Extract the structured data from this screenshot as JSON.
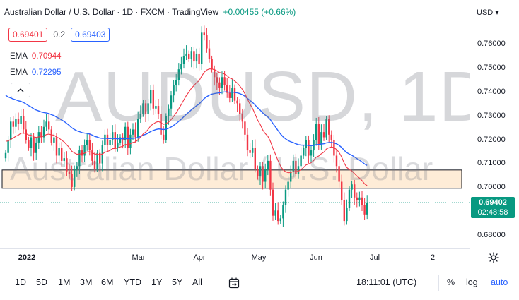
{
  "legend": {
    "title": "Australian Dollar / U.S. Dollar · 1D · FXCM · TradingView",
    "change": "+0.00455 (+0.66%)"
  },
  "bidask": {
    "bid": "0.69401",
    "spread": "0.2",
    "ask": "0.69403"
  },
  "ema1": {
    "label": "EMA",
    "value": "0.70944",
    "color": "#f23645"
  },
  "ema2": {
    "label": "EMA",
    "value": "0.72295",
    "color": "#2962ff"
  },
  "collapse_icon": "chevron-up-icon",
  "watermark": {
    "symbol": "AUDUSD, 1D",
    "description": "Australian Dollar / U.S. Dollar"
  },
  "currency": "USD ▾",
  "price_axis": [
    "0.76000",
    "0.75000",
    "0.74000",
    "0.73000",
    "0.72000",
    "0.71000",
    "0.70000",
    "0.68000"
  ],
  "time_axis": [
    "2022",
    "Mar",
    "Apr",
    "May",
    "Jun",
    "Jul",
    "2"
  ],
  "last_price": {
    "price": "0.69402",
    "countdown": "02:48:58",
    "color": "#089981"
  },
  "toolbar": {
    "timeframes": [
      "1D",
      "5D",
      "1M",
      "3M",
      "6M",
      "YTD",
      "1Y",
      "5Y",
      "All"
    ],
    "clock": "18:11:01 (UTC)",
    "percent": "%",
    "log": "log",
    "auto": "auto"
  },
  "colors": {
    "up": "#089981",
    "down": "#f23645",
    "zone_fill": "#fde5c9"
  },
  "chart_data": {
    "type": "candlestick",
    "symbol": "AUDUSD",
    "interval": "1D",
    "ylim": [
      0.6765,
      0.7715
    ],
    "price_ticks": [
      0.76,
      0.75,
      0.74,
      0.73,
      0.72,
      0.71,
      0.7,
      0.68
    ],
    "zone": [
      0.6995,
      0.7065
    ],
    "last_price": 0.69402,
    "close": [
      0.713,
      0.718,
      0.725,
      0.723,
      0.726,
      0.724,
      0.727,
      0.722,
      0.718,
      0.715,
      0.719,
      0.713,
      0.717,
      0.721,
      0.719,
      0.723,
      0.725,
      0.722,
      0.717,
      0.719,
      0.712,
      0.715,
      0.71,
      0.711,
      0.706,
      0.705,
      0.7,
      0.707,
      0.708,
      0.714,
      0.712,
      0.716,
      0.718,
      0.714,
      0.71,
      0.707,
      0.713,
      0.709,
      0.716,
      0.72,
      0.716,
      0.718,
      0.721,
      0.715,
      0.717,
      0.719,
      0.718,
      0.723,
      0.715,
      0.72,
      0.722,
      0.719,
      0.726,
      0.728,
      0.732,
      0.728,
      0.732,
      0.737,
      0.73,
      0.731,
      0.728,
      0.72,
      0.718,
      0.727,
      0.73,
      0.735,
      0.739,
      0.741,
      0.745,
      0.747,
      0.75,
      0.751,
      0.749,
      0.752,
      0.748,
      0.751,
      0.747,
      0.759,
      0.758,
      0.753,
      0.749,
      0.745,
      0.742,
      0.74,
      0.738,
      0.742,
      0.739,
      0.736,
      0.734,
      0.738,
      0.733,
      0.732,
      0.728,
      0.725,
      0.72,
      0.714,
      0.713,
      0.715,
      0.707,
      0.704,
      0.708,
      0.702,
      0.707,
      0.71,
      0.699,
      0.689,
      0.691,
      0.687,
      0.688,
      0.693,
      0.699,
      0.702,
      0.706,
      0.71,
      0.705,
      0.708,
      0.712,
      0.715,
      0.718,
      0.712,
      0.714,
      0.718,
      0.724,
      0.716,
      0.721,
      0.719,
      0.726,
      0.72,
      0.718,
      0.712,
      0.708,
      0.702,
      0.695,
      0.687,
      0.692,
      0.699,
      0.701,
      0.696,
      0.695,
      0.696,
      0.693,
      0.6895,
      0.694
    ]
  }
}
